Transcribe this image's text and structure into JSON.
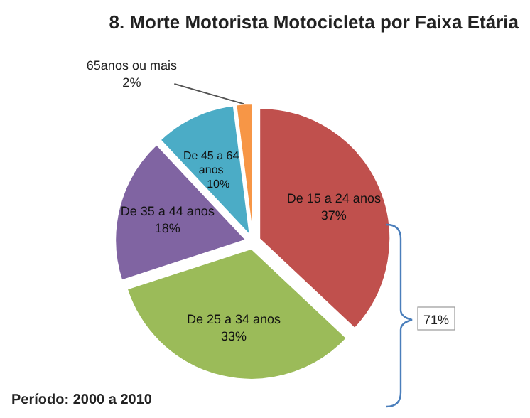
{
  "chart_data": {
    "type": "pie",
    "title": "8. Morte Motorista Motocicleta por Faixa Etária",
    "categories": [
      "De 15 a 24 anos",
      "De 25 a 34 anos",
      "De 35 a 44 anos",
      "De 45 a 64 anos",
      "65anos ou mais"
    ],
    "values": [
      37,
      33,
      18,
      10,
      2
    ],
    "value_labels": [
      "37%",
      "33%",
      "18%",
      "10%",
      "2%"
    ],
    "colors": [
      "#c0504d",
      "#9bbb59",
      "#8064a2",
      "#4bacc6",
      "#f79646"
    ],
    "annotations": [
      "71%",
      "Período: 2000 a 2010"
    ]
  }
}
